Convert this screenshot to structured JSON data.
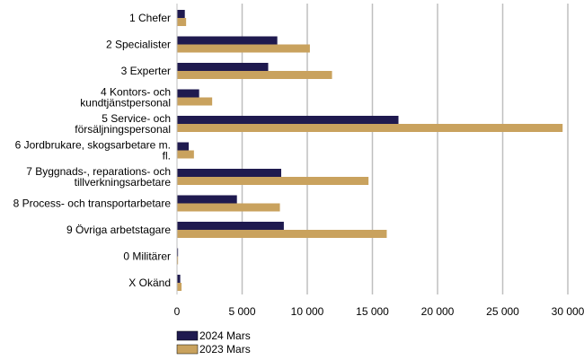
{
  "chart_data": {
    "type": "bar",
    "orientation": "horizontal",
    "categories": [
      [
        "1 Chefer"
      ],
      [
        "2 Specialister"
      ],
      [
        "3 Experter"
      ],
      [
        "4 Kontors- och",
        "kundtjänstpersonal"
      ],
      [
        "5 Service- och",
        "försäljningspersonal"
      ],
      [
        "6 Jordbrukare, skogsarbetare m.",
        "fl."
      ],
      [
        "7 Byggnads-, reparations- och",
        "tillverkningsarbetare"
      ],
      [
        "8 Process- och transportarbetare"
      ],
      [
        "9 Övriga arbetstagare"
      ],
      [
        "0 Militärer"
      ],
      [
        "X Okänd"
      ]
    ],
    "series": [
      {
        "name": "2024 Mars",
        "color": "#1f1a4f",
        "values": [
          600,
          7700,
          7000,
          1700,
          17000,
          900,
          8000,
          4600,
          8200,
          80,
          250
        ]
      },
      {
        "name": "2023 Mars",
        "color": "#c9a25e",
        "values": [
          700,
          10200,
          11900,
          2700,
          29600,
          1300,
          14700,
          7900,
          16100,
          80,
          350
        ]
      }
    ],
    "xlim": [
      0,
      30000
    ],
    "xticks": [
      0,
      5000,
      10000,
      15000,
      20000,
      25000,
      30000
    ],
    "xtick_labels": [
      "0",
      "5 000",
      "10 000",
      "15 000",
      "20 000",
      "25 000",
      "30 000"
    ],
    "grid": "vertical",
    "legend": "bottom-left"
  }
}
